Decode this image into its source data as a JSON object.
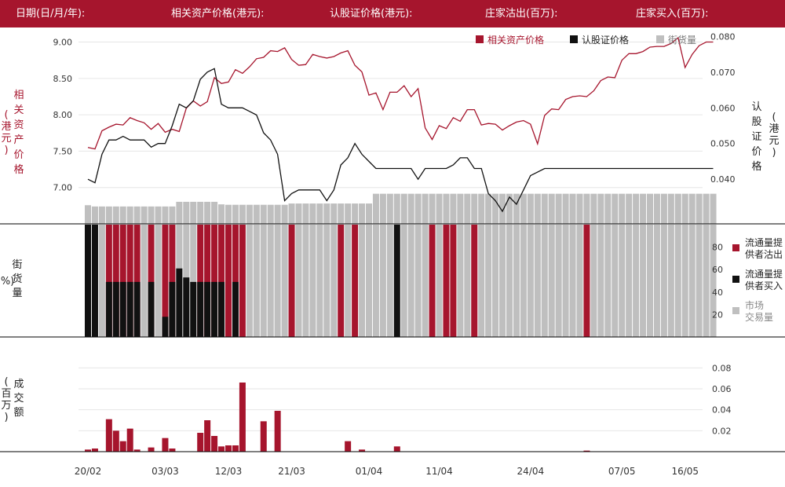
{
  "header": {
    "date": "日期(日/月/年):",
    "underlying": "相关资产价格(港元):",
    "warrant": "认股证价格(港元):",
    "mm_out": "庄家沽出(百万):",
    "mm_in": "庄家买入(百万):"
  },
  "colors": {
    "brand": "#a6152d",
    "black": "#111111",
    "gray": "#bfbfbf"
  },
  "chart_data": [
    {
      "type": "line",
      "title": "",
      "x_dates": [
        "20/02",
        "21/02",
        "22/02",
        "23/02",
        "24/02",
        "25/02",
        "26/02",
        "27/02",
        "28/02",
        "01/03",
        "02/03",
        "03/03",
        "04/03",
        "05/03",
        "06/03",
        "07/03",
        "08/03",
        "09/03",
        "10/03",
        "11/03",
        "12/03",
        "13/03",
        "14/03",
        "15/03",
        "16/03",
        "17/03",
        "18/03",
        "19/03",
        "20/03",
        "21/03",
        "22/03",
        "23/03",
        "24/03",
        "25/03",
        "26/03",
        "27/03",
        "28/03",
        "29/03",
        "30/03",
        "31/03",
        "01/04",
        "02/04",
        "03/04",
        "04/04",
        "05/04",
        "06/04",
        "07/04",
        "08/04",
        "09/04",
        "10/04",
        "11/04",
        "12/04",
        "13/04",
        "14/04",
        "15/04",
        "16/04",
        "17/04",
        "18/04",
        "19/04",
        "20/04",
        "21/04",
        "22/04",
        "23/04",
        "24/04",
        "25/04",
        "26/04",
        "27/04",
        "28/04",
        "29/04",
        "30/04",
        "01/05",
        "02/05",
        "03/05",
        "04/05",
        "05/05",
        "06/05",
        "07/05",
        "08/05",
        "09/05",
        "10/05",
        "11/05",
        "12/05",
        "13/05",
        "14/05",
        "15/05",
        "16/05",
        "17/05",
        "18/05",
        "19/05",
        "20/05"
      ],
      "x_tick_labels": [
        "20/02",
        "03/03",
        "12/03",
        "21/03",
        "01/04",
        "11/04",
        "24/04",
        "07/05",
        "16/05"
      ],
      "y_left_label": "相关资产价格(港元)",
      "y_left_ticks": [
        "7.00",
        "7.50",
        "8.00",
        "8.50",
        "9.00"
      ],
      "y_left_range": [
        6.5,
        9.2
      ],
      "y_right_label": "认股证价格(港元)",
      "y_right_ticks": [
        "0.040",
        "0.050",
        "0.060",
        "0.070",
        "0.080"
      ],
      "y_right_range": [
        0.0275,
        0.0825
      ],
      "legend": [
        "相关资产价格",
        "认股证价格",
        "街货量"
      ],
      "legend_position": "top-right",
      "series": [
        {
          "name": "相关资产价格",
          "axis": "left",
          "values": [
            7.55,
            7.53,
            7.78,
            7.83,
            7.87,
            7.86,
            7.96,
            7.92,
            7.89,
            7.8,
            7.88,
            7.76,
            7.8,
            7.77,
            8.09,
            8.19,
            8.12,
            8.18,
            8.51,
            8.43,
            8.45,
            8.62,
            8.57,
            8.66,
            8.77,
            8.79,
            8.88,
            8.87,
            8.92,
            8.76,
            8.68,
            8.69,
            8.83,
            8.8,
            8.78,
            8.8,
            8.85,
            8.88,
            8.68,
            8.59,
            8.27,
            8.3,
            8.07,
            8.31,
            8.31,
            8.4,
            8.25,
            8.36,
            7.82,
            7.66,
            7.85,
            7.81,
            7.96,
            7.91,
            8.07,
            8.07,
            7.86,
            7.88,
            7.87,
            7.79,
            7.85,
            7.9,
            7.92,
            7.87,
            7.6,
            7.99,
            8.08,
            8.07,
            8.21,
            8.25,
            8.26,
            8.25,
            8.33,
            8.47,
            8.52,
            8.51,
            8.75,
            8.84,
            8.84,
            8.87,
            8.93,
            8.94,
            8.94,
            8.98,
            9.06,
            8.65,
            8.83,
            8.95,
            9.0,
            9.0
          ]
        },
        {
          "name": "认股证价格",
          "axis": "right",
          "values": [
            0.04,
            0.039,
            0.047,
            0.051,
            0.051,
            0.052,
            0.051,
            0.051,
            0.051,
            0.049,
            0.05,
            0.05,
            0.055,
            0.061,
            0.06,
            0.062,
            0.068,
            0.07,
            0.071,
            0.061,
            0.06,
            0.06,
            0.06,
            0.059,
            0.058,
            0.053,
            0.051,
            0.047,
            0.034,
            0.036,
            0.037,
            0.037,
            0.037,
            0.037,
            0.034,
            0.037,
            0.044,
            0.046,
            0.05,
            0.047,
            0.045,
            0.043,
            0.043,
            0.043,
            0.043,
            0.043,
            0.043,
            0.04,
            0.043,
            0.043,
            0.043,
            0.043,
            0.044,
            0.046,
            0.046,
            0.043,
            0.043,
            0.036,
            0.034,
            0.031,
            0.035,
            0.033,
            0.037,
            0.041,
            0.042,
            0.043,
            0.043,
            0.043,
            0.043,
            0.043,
            0.043,
            0.043,
            0.043,
            0.043,
            0.043,
            0.043,
            0.043,
            0.043,
            0.043,
            0.043,
            0.043,
            0.043,
            0.043,
            0.043,
            0.043,
            0.043,
            0.043,
            0.043,
            0.043,
            0.043
          ]
        },
        {
          "name": "街货量",
          "axis": "right",
          "type": "bar",
          "unit": "%",
          "values": [
            44,
            41,
            41,
            41,
            41,
            41,
            41,
            41,
            41,
            41,
            41,
            41,
            41,
            52,
            52,
            52,
            52,
            52,
            52,
            46,
            45,
            45,
            45,
            45,
            45,
            45,
            45,
            45,
            45,
            48,
            48,
            48,
            48,
            48,
            48,
            48,
            48,
            48,
            48,
            48,
            48,
            71,
            71,
            71,
            71,
            71,
            71,
            71,
            71,
            71,
            71,
            71,
            71,
            71,
            71,
            71,
            71,
            71,
            71,
            71,
            71,
            71,
            71,
            71,
            71,
            71,
            71,
            71,
            71,
            71,
            71,
            71,
            71,
            71,
            71,
            71,
            71,
            71,
            71,
            71,
            71,
            71,
            71,
            71,
            71,
            71,
            71,
            71,
            71,
            71
          ]
        }
      ]
    },
    {
      "type": "bar",
      "title": "",
      "y_label": "街货量(%)",
      "y_ticks": [
        "20",
        "40",
        "60",
        "80"
      ],
      "y_range": [
        0,
        100
      ],
      "legend": [
        "流通量提供者沽出",
        "流通量提供者买入",
        "市场交易量"
      ],
      "legend_position": "right",
      "series": [
        {
          "name": "流通量提供者沽出",
          "indices": [
            3,
            4,
            5,
            6,
            7,
            9,
            11,
            12,
            16,
            17,
            18,
            19,
            20,
            21,
            22,
            29,
            36,
            38,
            49,
            51,
            52,
            55,
            71
          ]
        },
        {
          "name": "流通量提供者买入",
          "indices": [
            0,
            1,
            3,
            4,
            5,
            6,
            7,
            9,
            12,
            13,
            16,
            17,
            18,
            19,
            20,
            21,
            22,
            25,
            26,
            44
          ]
        },
        {
          "name": "市场交易量",
          "values": [
            100,
            100,
            100,
            100,
            100,
            100,
            100,
            100,
            100,
            100,
            100,
            100,
            100,
            100,
            100,
            100,
            100,
            100,
            100,
            100,
            100,
            100,
            100,
            100,
            100,
            100,
            100,
            100,
            100,
            100,
            100,
            100,
            100,
            100,
            100,
            100,
            100,
            100,
            100,
            100,
            100,
            100,
            100,
            100,
            100,
            100,
            100,
            100,
            100,
            100,
            100,
            100,
            100,
            100,
            100,
            100,
            100,
            100,
            100,
            100,
            100,
            100,
            100,
            100,
            100,
            100,
            100,
            100,
            100,
            100,
            100,
            100,
            100,
            100,
            100,
            100,
            100,
            100,
            100,
            100,
            100,
            100,
            100,
            100,
            100,
            100,
            100,
            100,
            100,
            100
          ]
        },
        {
          "name": "流通量提供者买入高度",
          "values": [
            100,
            100,
            0,
            49,
            49,
            49,
            49,
            49,
            0,
            49,
            0,
            18,
            49,
            61,
            53,
            49,
            49,
            49,
            49,
            49,
            0,
            49,
            0,
            0,
            0,
            0,
            0,
            0,
            0,
            0,
            0,
            0,
            0,
            0,
            0,
            0,
            0,
            0,
            0,
            0,
            0,
            0,
            0,
            0,
            100,
            0,
            0,
            0,
            0,
            0,
            0,
            0,
            0,
            0,
            0,
            0,
            0,
            0,
            0,
            0,
            0,
            0,
            0,
            0,
            0,
            0,
            0,
            0,
            0,
            0,
            0,
            0,
            0,
            0,
            0,
            0,
            0,
            0,
            0,
            0,
            0,
            0,
            0,
            0,
            0,
            0,
            0,
            0,
            0,
            0
          ]
        }
      ]
    },
    {
      "type": "bar",
      "title": "",
      "y_label": "成交额(百万)",
      "y_ticks": [
        "0.02",
        "0.04",
        "0.06",
        "0.08"
      ],
      "y_range": [
        0,
        0.09
      ],
      "series": [
        {
          "name": "成交额",
          "values": [
            0.002,
            0.003,
            0,
            0.031,
            0.02,
            0.01,
            0.022,
            0.002,
            0,
            0.004,
            0,
            0.013,
            0.003,
            0,
            0,
            0,
            0.018,
            0.03,
            0.015,
            0.005,
            0.006,
            0.006,
            0.066,
            0,
            0,
            0.029,
            0,
            0.039,
            0,
            0,
            0,
            0,
            0,
            0,
            0,
            0,
            0,
            0.01,
            0,
            0.002,
            0,
            0,
            0,
            0,
            0.005,
            0,
            0,
            0,
            0,
            0,
            0,
            0,
            0,
            0,
            0,
            0,
            0,
            0,
            0,
            0,
            0,
            0,
            0,
            0,
            0,
            0,
            0,
            0,
            0,
            0,
            0,
            0.001,
            0,
            0,
            0,
            0,
            0,
            0,
            0,
            0,
            0,
            0,
            0,
            0,
            0,
            0,
            0,
            0,
            0,
            0
          ]
        }
      ]
    }
  ]
}
